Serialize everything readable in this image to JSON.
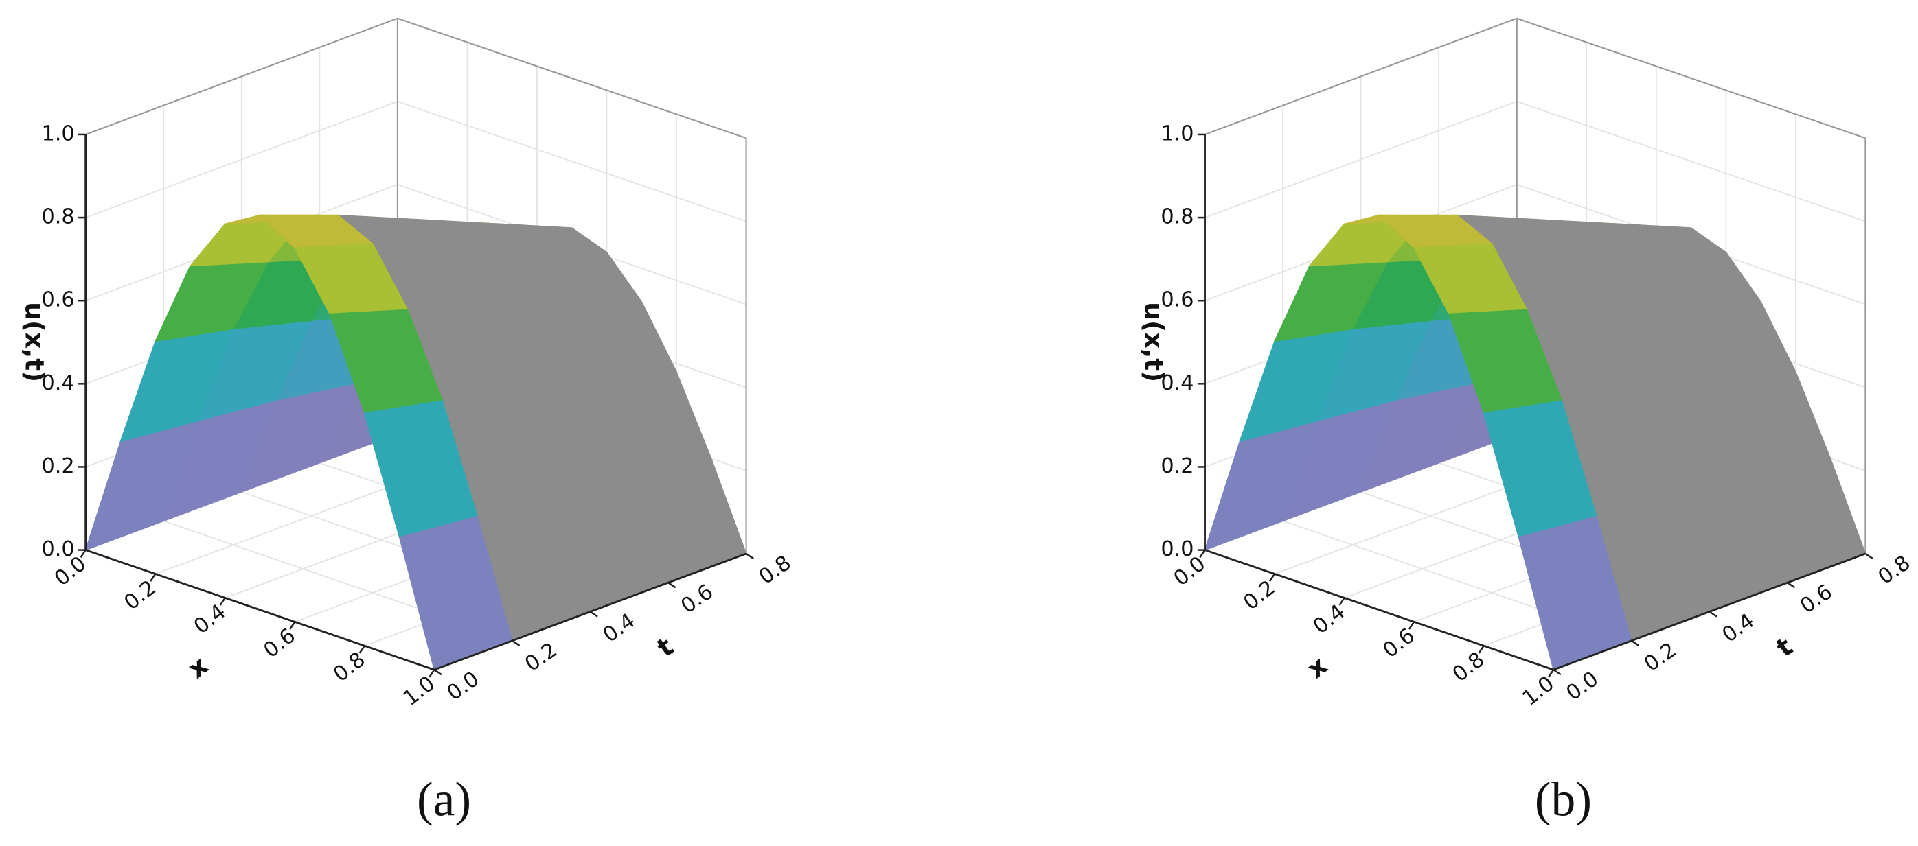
{
  "chart_data": [
    {
      "type": "surface",
      "panel_label": "(a)",
      "x_label": "x",
      "t_label": "t",
      "z_label": "u(x,t)",
      "x": [
        0,
        0.1,
        0.2,
        0.3,
        0.4,
        0.5,
        0.6,
        0.7,
        0.8,
        0.9,
        1.0
      ],
      "t": [
        0,
        0.2,
        0.4,
        0.6,
        0.8
      ],
      "z": [
        [
          0,
          0.29,
          0.56,
          0.77,
          0.9,
          0.95,
          0.9,
          0.77,
          0.56,
          0.29,
          0
        ],
        [
          0,
          0.27,
          0.52,
          0.71,
          0.84,
          0.88,
          0.84,
          0.71,
          0.52,
          0.27,
          0
        ],
        [
          0,
          0.25,
          0.47,
          0.65,
          0.76,
          0.8,
          0.76,
          0.65,
          0.47,
          0.25,
          0
        ],
        [
          0,
          0.22,
          0.42,
          0.58,
          0.68,
          0.72,
          0.68,
          0.58,
          0.42,
          0.22,
          0
        ],
        [
          0,
          0.2,
          0.38,
          0.52,
          0.61,
          0.64,
          0.61,
          0.52,
          0.38,
          0.2,
          0
        ]
      ],
      "xlim": [
        0,
        1.0
      ],
      "tlim": [
        0,
        0.8
      ],
      "zlim": [
        0,
        1.0
      ],
      "xticks": [
        {
          "value": 0,
          "label": "0.0"
        },
        0.2,
        0.4,
        0.6,
        0.8,
        {
          "value": 1.0,
          "label": "1.0"
        }
      ],
      "tticks": [
        {
          "value": 0,
          "label": "0.0"
        },
        0.2,
        0.4,
        0.6,
        0.8
      ],
      "zticks": [
        {
          "value": 0,
          "label": "0.0"
        },
        0.2,
        0.4,
        0.6,
        0.8,
        {
          "value": 1.0,
          "label": "1.0"
        }
      ],
      "grid": true,
      "surface_color": "#8c8c8c",
      "colormap": [
        "#9a78b0",
        "#6f86c4",
        "#2fa8b8",
        "#2fa84c",
        "#a8bf34",
        "#d9b43a"
      ]
    },
    {
      "type": "surface",
      "panel_label": "(b)",
      "x_label": "x",
      "t_label": "t",
      "z_label": "u(x,t)",
      "x": [
        0,
        0.1,
        0.2,
        0.3,
        0.4,
        0.5,
        0.6,
        0.7,
        0.8,
        0.9,
        1.0
      ],
      "t": [
        0,
        0.2,
        0.4,
        0.6,
        0.8
      ],
      "z": [
        [
          0,
          0.29,
          0.56,
          0.77,
          0.9,
          0.95,
          0.9,
          0.77,
          0.56,
          0.29,
          0
        ],
        [
          0,
          0.27,
          0.52,
          0.71,
          0.84,
          0.88,
          0.84,
          0.71,
          0.52,
          0.27,
          0
        ],
        [
          0,
          0.25,
          0.47,
          0.65,
          0.76,
          0.8,
          0.76,
          0.65,
          0.47,
          0.25,
          0
        ],
        [
          0,
          0.22,
          0.42,
          0.58,
          0.68,
          0.72,
          0.68,
          0.58,
          0.42,
          0.22,
          0
        ],
        [
          0,
          0.2,
          0.38,
          0.52,
          0.61,
          0.64,
          0.61,
          0.52,
          0.38,
          0.2,
          0
        ]
      ],
      "xlim": [
        0,
        1.0
      ],
      "tlim": [
        0,
        0.8
      ],
      "zlim": [
        0,
        1.0
      ],
      "xticks": [
        {
          "value": 0,
          "label": "0.0"
        },
        0.2,
        0.4,
        0.6,
        0.8,
        {
          "value": 1.0,
          "label": "1.0"
        }
      ],
      "tticks": [
        {
          "value": 0,
          "label": "0.0"
        },
        0.2,
        0.4,
        0.6,
        0.8
      ],
      "zticks": [
        {
          "value": 0,
          "label": "0.0"
        },
        0.2,
        0.4,
        0.6,
        0.8,
        {
          "value": 1.0,
          "label": "1.0"
        }
      ],
      "grid": true,
      "surface_color": "#8c8c8c",
      "colormap": [
        "#9a78b0",
        "#6f86c4",
        "#2fa8b8",
        "#2fa84c",
        "#a8bf34",
        "#d9b43a"
      ]
    }
  ]
}
